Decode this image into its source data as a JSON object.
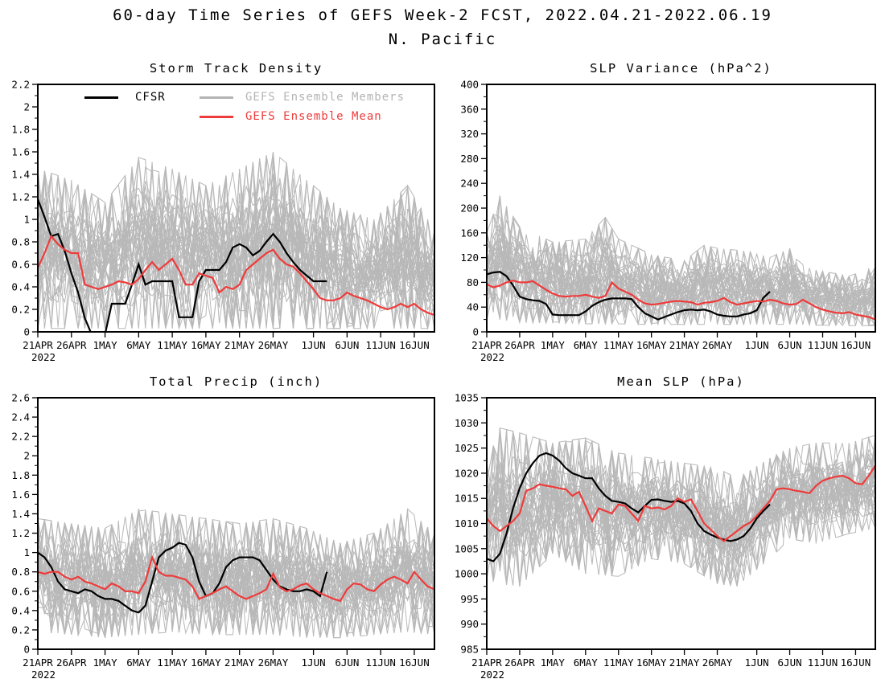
{
  "page": {
    "title_line1": "60-day Time Series of GEFS Week-2 FCST, 2022.04.21-2022.06.19",
    "title_line2": "N. Pacific"
  },
  "colors": {
    "cfsr": "#000000",
    "ensemble_member": "#b8b8b8",
    "ensemble_mean": "#ee3b3b"
  },
  "legend": {
    "items": [
      {
        "label": "CFSR",
        "color": "#000000"
      },
      {
        "label": "GEFS Ensemble Members",
        "color": "#b4b4b4"
      },
      {
        "label": "GEFS Ensemble Mean",
        "color": "#ee3b3b"
      }
    ]
  },
  "x_axis": {
    "n_days": 60,
    "start_date": "21APR2022",
    "end_date": "19JUN2022",
    "tick_days": [
      0,
      5,
      10,
      15,
      20,
      25,
      30,
      35,
      41,
      46,
      51,
      56
    ],
    "tick_labels": [
      "21APR",
      "26APR",
      "1MAY",
      "6MAY",
      "11MAY",
      "16MAY",
      "21MAY",
      "26MAY",
      "1JUN",
      "6JUN",
      "11JUN",
      "16JUN"
    ],
    "first_tick_sublabel": "2022"
  },
  "chart_data": [
    {
      "type": "line",
      "id": "storm_track_density",
      "title": "Storm Track Density",
      "xlabel": "",
      "ylabel": "",
      "grid": false,
      "legend_position": "inside-top",
      "ylim": [
        0,
        2.2
      ],
      "y_tick_values": [
        0,
        0.2,
        0.4,
        0.6,
        0.8,
        1.0,
        1.2,
        1.4,
        1.6,
        1.8,
        2.0,
        2.2
      ],
      "y_tick_labels": [
        "0",
        "0.2",
        "0.4",
        "0.6",
        "0.8",
        "1",
        "1.2",
        "1.4",
        "1.6",
        "1.8",
        "2",
        "2.2"
      ],
      "y_minor_step": 0.1,
      "n_members": 42,
      "seed": 11,
      "series": {
        "cfsr": [
          1.18,
          1.02,
          0.85,
          0.87,
          0.72,
          0.52,
          0.35,
          0.12,
          -0.02,
          -0.02,
          -0.02,
          0.25,
          0.25,
          0.25,
          0.42,
          0.6,
          0.42,
          0.45,
          0.45,
          0.45,
          0.45,
          0.13,
          0.13,
          0.13,
          0.45,
          0.55,
          0.55,
          0.55,
          0.62,
          0.75,
          0.78,
          0.75,
          0.68,
          0.72,
          0.8,
          0.87,
          0.8,
          0.7,
          0.62,
          0.55,
          0.5,
          0.45,
          0.45,
          0.45
        ],
        "ensemble_mean": [
          0.57,
          0.7,
          0.85,
          0.78,
          0.73,
          0.7,
          0.7,
          0.42,
          0.4,
          0.38,
          0.4,
          0.42,
          0.45,
          0.44,
          0.42,
          0.47,
          0.55,
          0.62,
          0.55,
          0.6,
          0.65,
          0.55,
          0.42,
          0.42,
          0.52,
          0.5,
          0.48,
          0.35,
          0.4,
          0.38,
          0.42,
          0.55,
          0.6,
          0.65,
          0.7,
          0.73,
          0.65,
          0.6,
          0.58,
          0.52,
          0.45,
          0.38,
          0.3,
          0.28,
          0.28,
          0.3,
          0.35,
          0.32,
          0.3,
          0.28,
          0.25,
          0.22,
          0.2,
          0.22,
          0.25,
          0.22,
          0.25,
          0.2,
          0.17,
          0.15
        ]
      },
      "ensemble_band": {
        "days": [
          0,
          5,
          10,
          15,
          20,
          25,
          30,
          35,
          40,
          45,
          50,
          55,
          59
        ],
        "min": [
          0.03,
          0.03,
          0.03,
          0.03,
          0.03,
          0.03,
          0.03,
          0.03,
          0.03,
          0.03,
          0.03,
          0.03,
          0.03
        ],
        "max": [
          1.45,
          1.35,
          1.15,
          1.55,
          1.45,
          1.3,
          1.45,
          1.6,
          1.35,
          1.1,
          1.0,
          1.3,
          0.9
        ]
      }
    },
    {
      "type": "line",
      "id": "slp_variance",
      "title": "SLP Variance (hPa^2)",
      "xlabel": "",
      "ylabel": "",
      "grid": false,
      "ylim": [
        0,
        400
      ],
      "y_tick_values": [
        0,
        40,
        80,
        120,
        160,
        200,
        240,
        280,
        320,
        360,
        400
      ],
      "y_tick_labels": [
        "0",
        "40",
        "80",
        "120",
        "160",
        "200",
        "240",
        "280",
        "320",
        "360",
        "400"
      ],
      "y_minor_step": 20,
      "n_members": 42,
      "seed": 22,
      "series": {
        "cfsr": [
          93,
          96,
          97,
          90,
          75,
          57,
          53,
          51,
          50,
          45,
          28,
          27,
          27,
          27,
          27,
          33,
          42,
          48,
          52,
          54,
          54,
          54,
          53,
          40,
          30,
          25,
          20,
          24,
          28,
          32,
          35,
          36,
          35,
          36,
          33,
          28,
          26,
          25,
          25,
          28,
          30,
          35,
          55,
          65
        ],
        "ensemble_mean": [
          77,
          72,
          75,
          80,
          83,
          80,
          80,
          82,
          75,
          68,
          62,
          58,
          57,
          58,
          58,
          60,
          57,
          55,
          58,
          80,
          70,
          65,
          60,
          52,
          46,
          44,
          45,
          47,
          49,
          50,
          49,
          48,
          44,
          47,
          48,
          50,
          55,
          48,
          44,
          46,
          48,
          50,
          49,
          52,
          50,
          46,
          44,
          45,
          52,
          46,
          40,
          36,
          33,
          31,
          30,
          32,
          28,
          26,
          24,
          20
        ]
      },
      "ensemble_band": {
        "days": [
          0,
          2,
          5,
          10,
          15,
          18,
          20,
          25,
          30,
          33,
          35,
          40,
          43,
          46,
          50,
          55,
          59
        ],
        "min": [
          18,
          20,
          15,
          14,
          13,
          13,
          13,
          12,
          12,
          12,
          12,
          12,
          12,
          12,
          11,
          10,
          10
        ],
        "max": [
          160,
          220,
          170,
          145,
          150,
          185,
          150,
          125,
          115,
          140,
          135,
          130,
          120,
          135,
          100,
          90,
          105
        ]
      }
    },
    {
      "type": "line",
      "id": "total_precip",
      "title": "Total Precip (inch)",
      "xlabel": "",
      "ylabel": "",
      "grid": false,
      "ylim": [
        0,
        2.6
      ],
      "y_tick_values": [
        0,
        0.2,
        0.4,
        0.6,
        0.8,
        1.0,
        1.2,
        1.4,
        1.6,
        1.8,
        2.0,
        2.2,
        2.4,
        2.6
      ],
      "y_tick_labels": [
        "0",
        "0.2",
        "0.4",
        "0.6",
        "0.8",
        "1",
        "1.2",
        "1.4",
        "1.6",
        "1.8",
        "2",
        "2.2",
        "2.4",
        "2.6"
      ],
      "y_minor_step": 0.1,
      "n_members": 42,
      "seed": 33,
      "series": {
        "cfsr": [
          1.0,
          0.95,
          0.85,
          0.7,
          0.62,
          0.6,
          0.58,
          0.62,
          0.6,
          0.55,
          0.52,
          0.52,
          0.5,
          0.45,
          0.4,
          0.38,
          0.45,
          0.7,
          0.95,
          1.02,
          1.05,
          1.1,
          1.08,
          0.95,
          0.7,
          0.55,
          0.58,
          0.68,
          0.85,
          0.92,
          0.95,
          0.95,
          0.95,
          0.92,
          0.82,
          0.72,
          0.65,
          0.62,
          0.6,
          0.6,
          0.62,
          0.6,
          0.55,
          0.8
        ],
        "ensemble_mean": [
          0.8,
          0.78,
          0.8,
          0.8,
          0.75,
          0.72,
          0.75,
          0.7,
          0.68,
          0.65,
          0.62,
          0.68,
          0.65,
          0.6,
          0.6,
          0.58,
          0.7,
          0.95,
          0.8,
          0.76,
          0.76,
          0.74,
          0.72,
          0.65,
          0.52,
          0.55,
          0.58,
          0.62,
          0.65,
          0.6,
          0.55,
          0.52,
          0.55,
          0.58,
          0.62,
          0.78,
          0.64,
          0.6,
          0.62,
          0.66,
          0.68,
          0.62,
          0.58,
          0.55,
          0.52,
          0.5,
          0.62,
          0.68,
          0.67,
          0.62,
          0.6,
          0.67,
          0.72,
          0.75,
          0.72,
          0.68,
          0.8,
          0.72,
          0.65,
          0.62
        ]
      },
      "ensemble_band": {
        "days": [
          0,
          5,
          10,
          15,
          20,
          25,
          30,
          35,
          40,
          45,
          50,
          55,
          59
        ],
        "min": [
          0.18,
          0.15,
          0.12,
          0.15,
          0.18,
          0.15,
          0.15,
          0.15,
          0.12,
          0.12,
          0.15,
          0.18,
          0.15
        ],
        "max": [
          1.35,
          1.3,
          1.25,
          1.45,
          1.4,
          1.35,
          1.3,
          1.35,
          1.25,
          1.1,
          1.2,
          1.45,
          1.2
        ]
      }
    },
    {
      "type": "line",
      "id": "mean_slp",
      "title": "Mean SLP (hPa)",
      "xlabel": "",
      "ylabel": "",
      "grid": false,
      "ylim": [
        985,
        1035
      ],
      "y_tick_values": [
        985,
        990,
        995,
        1000,
        1005,
        1010,
        1015,
        1020,
        1025,
        1030,
        1035
      ],
      "y_tick_labels": [
        "985",
        "990",
        "995",
        "1000",
        "1005",
        "1010",
        "1015",
        "1020",
        "1025",
        "1030",
        "1035"
      ],
      "y_minor_step": 2.5,
      "n_members": 42,
      "seed": 44,
      "series": {
        "cfsr": [
          1003.0,
          1002.5,
          1004.0,
          1008.0,
          1013.0,
          1017.0,
          1020.0,
          1022.0,
          1023.5,
          1024.0,
          1023.5,
          1022.5,
          1021.0,
          1020.0,
          1019.5,
          1019.0,
          1019.0,
          1017.0,
          1015.5,
          1014.5,
          1014.3,
          1014.0,
          1013.0,
          1012.2,
          1013.5,
          1014.7,
          1014.8,
          1014.5,
          1014.3,
          1014.5,
          1014.0,
          1012.5,
          1010.0,
          1008.5,
          1007.8,
          1007.2,
          1006.8,
          1006.5,
          1006.8,
          1007.5,
          1009.0,
          1011.0,
          1012.5,
          1013.8
        ],
        "ensemble_mean": [
          1011.0,
          1009.5,
          1008.5,
          1009.5,
          1010.5,
          1012.0,
          1016.5,
          1017.0,
          1017.8,
          1017.5,
          1017.3,
          1017.0,
          1016.8,
          1015.5,
          1016.3,
          1013.5,
          1010.5,
          1013.0,
          1012.5,
          1012.0,
          1013.8,
          1013.5,
          1012.0,
          1010.5,
          1013.5,
          1013.0,
          1013.2,
          1012.8,
          1013.5,
          1015.0,
          1014.3,
          1014.8,
          1012.5,
          1010.0,
          1008.8,
          1007.5,
          1006.5,
          1007.5,
          1008.5,
          1009.5,
          1010.2,
          1011.5,
          1013.0,
          1014.5,
          1016.8,
          1017.0,
          1016.8,
          1016.5,
          1016.3,
          1016.0,
          1017.5,
          1018.5,
          1019.0,
          1019.3,
          1019.5,
          1019.0,
          1018.0,
          1017.8,
          1019.5,
          1021.5
        ]
      },
      "ensemble_band": {
        "days": [
          0,
          2,
          5,
          10,
          15,
          20,
          25,
          30,
          35,
          38,
          43,
          46,
          50,
          55,
          59
        ],
        "min": [
          999,
          998,
          997.5,
          1004,
          1000,
          999.5,
          1003,
          1002,
          998,
          997.5,
          1003,
          1007,
          1006,
          1008,
          1009
        ],
        "max": [
          1022,
          1029,
          1028,
          1026,
          1027,
          1024,
          1023,
          1022,
          1021,
          1019,
          1023,
          1025,
          1026,
          1026,
          1027.5
        ]
      }
    }
  ]
}
